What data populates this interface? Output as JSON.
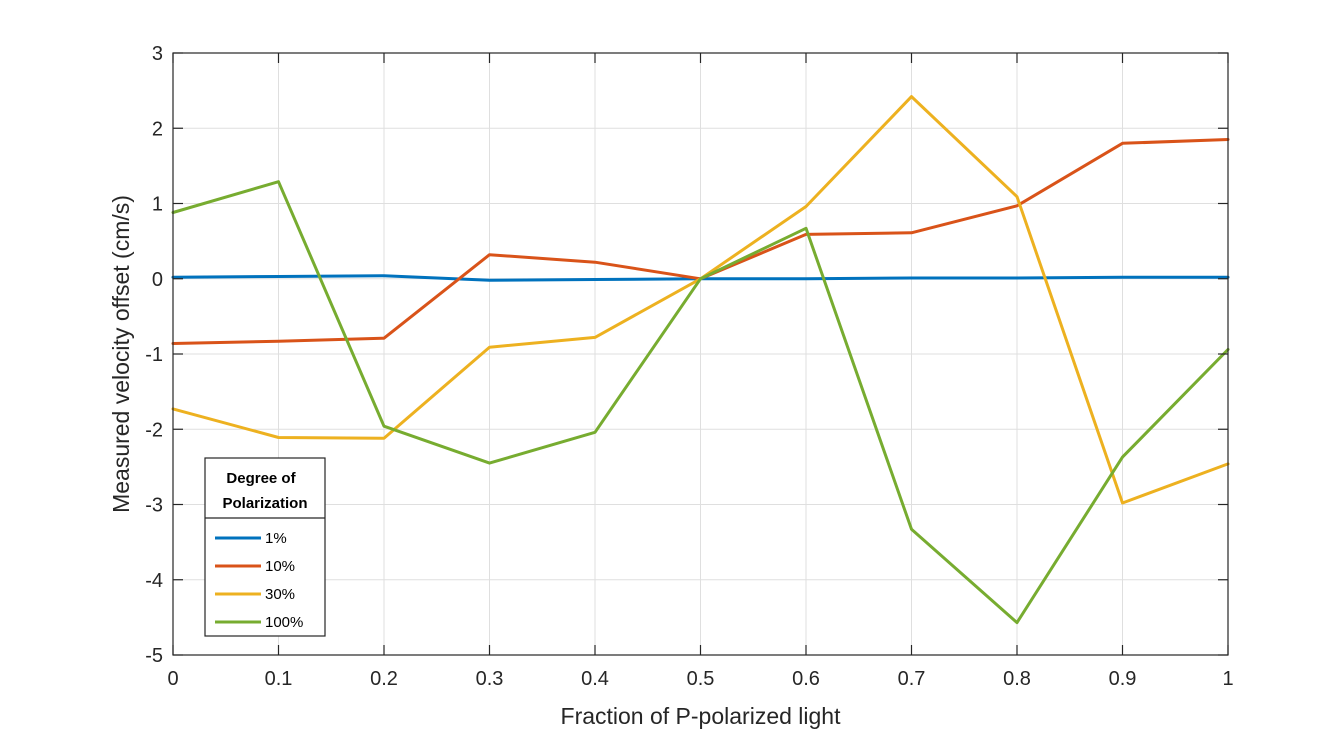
{
  "chart_data": {
    "type": "line",
    "xlabel": "Fraction of P-polarized light",
    "ylabel": "Measured velocity offset (cm/s)",
    "xlim": [
      0,
      1
    ],
    "ylim": [
      -5,
      3
    ],
    "xticks": [
      0,
      0.1,
      0.2,
      0.3,
      0.4,
      0.5,
      0.6,
      0.7,
      0.8,
      0.9,
      1
    ],
    "xtick_labels": [
      "0",
      "0.1",
      "0.2",
      "0.3",
      "0.4",
      "0.5",
      "0.6",
      "0.7",
      "0.8",
      "0.9",
      "1"
    ],
    "yticks": [
      -5,
      -4,
      -3,
      -2,
      -1,
      0,
      1,
      2,
      3
    ],
    "ytick_labels": [
      "-5",
      "-4",
      "-3",
      "-2",
      "-1",
      "0",
      "1",
      "2",
      "3"
    ],
    "grid": true,
    "legend": {
      "title_lines": [
        "Degree of",
        "Polarization"
      ],
      "location": "bottom-left"
    },
    "x": [
      0,
      0.1,
      0.2,
      0.3,
      0.4,
      0.5,
      0.6,
      0.7,
      0.8,
      0.9,
      1
    ],
    "series": [
      {
        "name": "1%",
        "color": "#0072BD",
        "values": [
          0.02,
          0.03,
          0.04,
          -0.02,
          -0.01,
          0.0,
          0.0,
          0.01,
          0.01,
          0.02,
          0.02
        ]
      },
      {
        "name": "10%",
        "color": "#D95319",
        "values": [
          -0.86,
          -0.83,
          -0.79,
          0.32,
          0.22,
          0.0,
          0.59,
          0.61,
          0.97,
          1.8,
          1.85
        ]
      },
      {
        "name": "30%",
        "color": "#EDB120",
        "values": [
          -1.73,
          -2.11,
          -2.12,
          -0.91,
          -0.78,
          0.0,
          0.96,
          2.42,
          1.09,
          -2.98,
          -2.46
        ]
      },
      {
        "name": "100%",
        "color": "#77AC30",
        "values": [
          0.88,
          1.29,
          -1.96,
          -2.45,
          -2.04,
          0.0,
          0.67,
          -3.33,
          -4.57,
          -2.37,
          -0.94
        ]
      }
    ]
  }
}
